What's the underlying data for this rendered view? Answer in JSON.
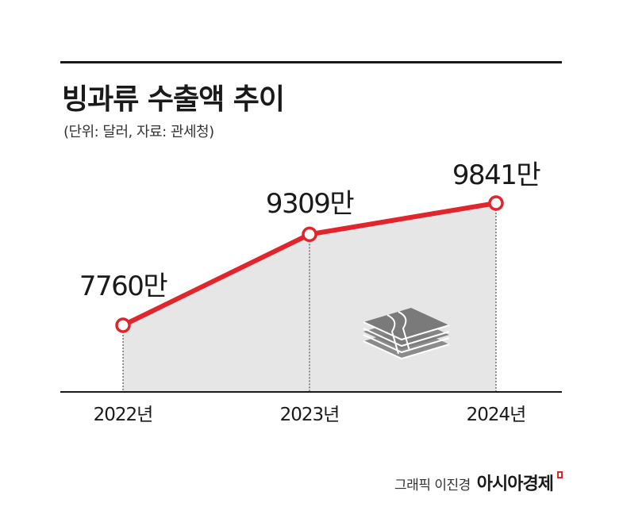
{
  "header": {
    "title": "빙과류 수출액 추이",
    "subtitle": "(단위: 달러, 자료: 관세청)"
  },
  "credit": {
    "graphic": "그래픽 이진경",
    "brand": "아시아경제"
  },
  "colors": {
    "line": "#e0262c",
    "area": "#e6e6e6",
    "axis": "#1a1a1a"
  },
  "icon": "money-stack-icon",
  "chart_data": {
    "type": "area",
    "categories": [
      "2022년",
      "2023년",
      "2024년"
    ],
    "values": [
      77600000,
      93090000,
      98410000
    ],
    "data_labels": [
      "7760만",
      "9309만",
      "9841만"
    ],
    "title": "빙과류 수출액 추이",
    "xlabel": "",
    "ylabel": "",
    "grid": false
  }
}
